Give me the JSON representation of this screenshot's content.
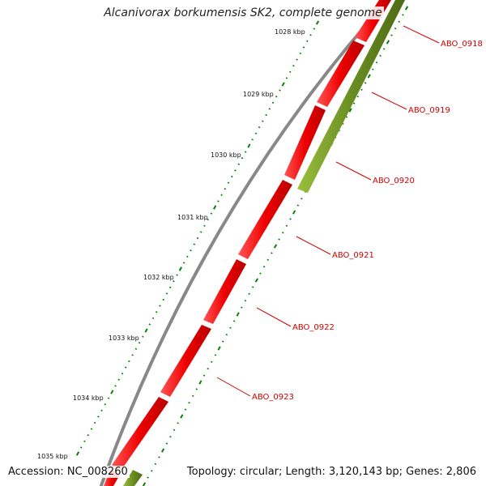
{
  "title": "Alcanivorax borkumensis SK2, complete genome",
  "footer": {
    "accession": "Accession: NC_008260",
    "topology": "Topology: circular; Length: 3,120,143 bp; Genes: 2,806"
  },
  "colors": {
    "backbone": "#888888",
    "reverse_gene": "#ee0000",
    "forward_gene": "#6b8e23",
    "tick": "#008000",
    "gene_label": "#d00000"
  },
  "kbp_labels": [
    "1028 kbp",
    "1029 kbp",
    "1030 kbp",
    "1031 kbp",
    "1032 kbp",
    "1033 kbp",
    "1034 kbp",
    "1035 kbp"
  ],
  "genes": [
    {
      "name": "ABO_0918",
      "strand": "reverse"
    },
    {
      "name": "ABO_0919",
      "strand": "reverse"
    },
    {
      "name": "ABO_0920",
      "strand": "forward"
    },
    {
      "name": "ABO_0921",
      "strand": "reverse"
    },
    {
      "name": "ABO_0922",
      "strand": "reverse"
    },
    {
      "name": "ABO_0923",
      "strand": "reverse"
    }
  ]
}
